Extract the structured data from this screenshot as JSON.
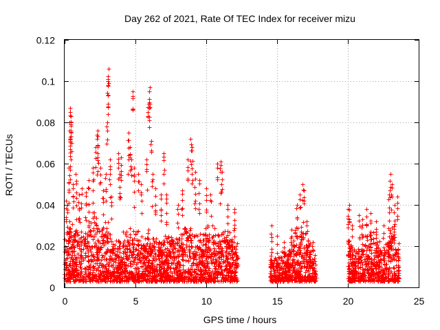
{
  "chart_data": {
    "type": "scatter",
    "title": "Day 262 of 2021, Rate Of TEC Index for receiver mizu",
    "xlabel": "GPS time / hours",
    "ylabel": "ROTI / TECUs",
    "xlim": [
      0,
      25
    ],
    "ylim": [
      0,
      0.12
    ],
    "x_ticks": [
      0,
      5,
      10,
      15,
      20,
      25
    ],
    "x_tick_labels": [
      "0",
      "5",
      "10",
      "15",
      "20",
      "25"
    ],
    "y_ticks": [
      0,
      0.02,
      0.04,
      0.06,
      0.08,
      0.1,
      0.12
    ],
    "y_tick_labels": [
      "0",
      "0.02",
      "0.04",
      "0.06",
      "0.08",
      "0.1",
      "0.12"
    ],
    "grid": true,
    "marker": "+",
    "color": "#ff0000",
    "segments": [
      {
        "start": 0.0,
        "end": 12.25,
        "envelope": [
          [
            0.0,
            0.028
          ],
          [
            0.3,
            0.036
          ],
          [
            0.6,
            0.03
          ],
          [
            1.0,
            0.034
          ],
          [
            1.4,
            0.03
          ],
          [
            1.8,
            0.036
          ],
          [
            2.3,
            0.042
          ],
          [
            2.6,
            0.03
          ],
          [
            3.0,
            0.036
          ],
          [
            3.5,
            0.022
          ],
          [
            4.0,
            0.026
          ],
          [
            4.5,
            0.032
          ],
          [
            5.0,
            0.03
          ],
          [
            5.5,
            0.026
          ],
          [
            6.0,
            0.03
          ],
          [
            6.5,
            0.024
          ],
          [
            7.0,
            0.028
          ],
          [
            7.5,
            0.032
          ],
          [
            8.0,
            0.028
          ],
          [
            8.5,
            0.034
          ],
          [
            9.0,
            0.03
          ],
          [
            9.5,
            0.028
          ],
          [
            10.0,
            0.032
          ],
          [
            10.5,
            0.03
          ],
          [
            11.0,
            0.034
          ],
          [
            11.5,
            0.03
          ],
          [
            12.25,
            0.028
          ]
        ]
      },
      {
        "start": 14.5,
        "end": 17.75,
        "envelope": [
          [
            14.5,
            0.018
          ],
          [
            15.0,
            0.016
          ],
          [
            15.5,
            0.02
          ],
          [
            16.0,
            0.024
          ],
          [
            16.5,
            0.034
          ],
          [
            16.8,
            0.036
          ],
          [
            17.2,
            0.026
          ],
          [
            17.75,
            0.018
          ]
        ]
      },
      {
        "start": 20.0,
        "end": 23.6,
        "envelope": [
          [
            20.0,
            0.024
          ],
          [
            20.5,
            0.02
          ],
          [
            21.0,
            0.026
          ],
          [
            21.5,
            0.03
          ],
          [
            22.0,
            0.026
          ],
          [
            22.5,
            0.022
          ],
          [
            23.0,
            0.034
          ],
          [
            23.3,
            0.03
          ],
          [
            23.6,
            0.024
          ]
        ]
      }
    ],
    "floor": 0.003,
    "spikes": [
      {
        "x": 0.1,
        "y": 0.042
      },
      {
        "x": 0.2,
        "y": 0.04
      },
      {
        "x": 0.3,
        "y": 0.058
      },
      {
        "x": 0.35,
        "y": 0.08
      },
      {
        "x": 0.4,
        "y": 0.087
      },
      {
        "x": 0.45,
        "y": 0.083
      },
      {
        "x": 0.38,
        "y": 0.067
      },
      {
        "x": 0.42,
        "y": 0.079
      },
      {
        "x": 0.6,
        "y": 0.05
      },
      {
        "x": 0.8,
        "y": 0.055
      },
      {
        "x": 1.0,
        "y": 0.045
      },
      {
        "x": 1.2,
        "y": 0.048
      },
      {
        "x": 1.5,
        "y": 0.046
      },
      {
        "x": 1.7,
        "y": 0.052
      },
      {
        "x": 2.0,
        "y": 0.058
      },
      {
        "x": 2.2,
        "y": 0.068
      },
      {
        "x": 2.3,
        "y": 0.074
      },
      {
        "x": 2.35,
        "y": 0.076
      },
      {
        "x": 2.5,
        "y": 0.058
      },
      {
        "x": 2.7,
        "y": 0.047
      },
      {
        "x": 2.9,
        "y": 0.055
      },
      {
        "x": 3.0,
        "y": 0.08
      },
      {
        "x": 3.05,
        "y": 0.101
      },
      {
        "x": 3.1,
        "y": 0.106
      },
      {
        "x": 3.2,
        "y": 0.062
      },
      {
        "x": 3.3,
        "y": 0.044
      },
      {
        "x": 3.8,
        "y": 0.065
      },
      {
        "x": 3.9,
        "y": 0.055
      },
      {
        "x": 4.0,
        "y": 0.063
      },
      {
        "x": 4.5,
        "y": 0.075
      },
      {
        "x": 4.6,
        "y": 0.068
      },
      {
        "x": 4.7,
        "y": 0.062
      },
      {
        "x": 4.8,
        "y": 0.095
      },
      {
        "x": 4.9,
        "y": 0.058
      },
      {
        "x": 5.2,
        "y": 0.055
      },
      {
        "x": 5.4,
        "y": 0.05
      },
      {
        "x": 5.8,
        "y": 0.062
      },
      {
        "x": 5.9,
        "y": 0.089
      },
      {
        "x": 5.95,
        "y": 0.095
      },
      {
        "x": 6.0,
        "y": 0.097
      },
      {
        "x": 6.1,
        "y": 0.071
      },
      {
        "x": 6.2,
        "y": 0.055
      },
      {
        "x": 6.4,
        "y": 0.048
      },
      {
        "x": 6.8,
        "y": 0.045
      },
      {
        "x": 7.0,
        "y": 0.065
      },
      {
        "x": 7.2,
        "y": 0.045
      },
      {
        "x": 8.0,
        "y": 0.04
      },
      {
        "x": 8.3,
        "y": 0.047
      },
      {
        "x": 8.7,
        "y": 0.062
      },
      {
        "x": 8.9,
        "y": 0.072
      },
      {
        "x": 9.0,
        "y": 0.068
      },
      {
        "x": 9.2,
        "y": 0.056
      },
      {
        "x": 9.5,
        "y": 0.052
      },
      {
        "x": 10.0,
        "y": 0.048
      },
      {
        "x": 10.3,
        "y": 0.045
      },
      {
        "x": 10.8,
        "y": 0.06
      },
      {
        "x": 11.0,
        "y": 0.061
      },
      {
        "x": 11.1,
        "y": 0.056
      },
      {
        "x": 11.5,
        "y": 0.04
      },
      {
        "x": 12.0,
        "y": 0.038
      },
      {
        "x": 14.6,
        "y": 0.03
      },
      {
        "x": 15.0,
        "y": 0.025
      },
      {
        "x": 15.5,
        "y": 0.022
      },
      {
        "x": 16.0,
        "y": 0.028
      },
      {
        "x": 16.4,
        "y": 0.04
      },
      {
        "x": 16.6,
        "y": 0.045
      },
      {
        "x": 16.8,
        "y": 0.05
      },
      {
        "x": 16.9,
        "y": 0.047
      },
      {
        "x": 17.1,
        "y": 0.032
      },
      {
        "x": 17.5,
        "y": 0.022
      },
      {
        "x": 20.0,
        "y": 0.038
      },
      {
        "x": 20.1,
        "y": 0.04
      },
      {
        "x": 20.3,
        "y": 0.03
      },
      {
        "x": 20.8,
        "y": 0.035
      },
      {
        "x": 21.0,
        "y": 0.033
      },
      {
        "x": 21.3,
        "y": 0.038
      },
      {
        "x": 21.6,
        "y": 0.036
      },
      {
        "x": 22.0,
        "y": 0.032
      },
      {
        "x": 22.5,
        "y": 0.03
      },
      {
        "x": 22.9,
        "y": 0.045
      },
      {
        "x": 23.0,
        "y": 0.055
      },
      {
        "x": 23.1,
        "y": 0.05
      },
      {
        "x": 23.3,
        "y": 0.04
      },
      {
        "x": 23.5,
        "y": 0.044
      }
    ]
  }
}
